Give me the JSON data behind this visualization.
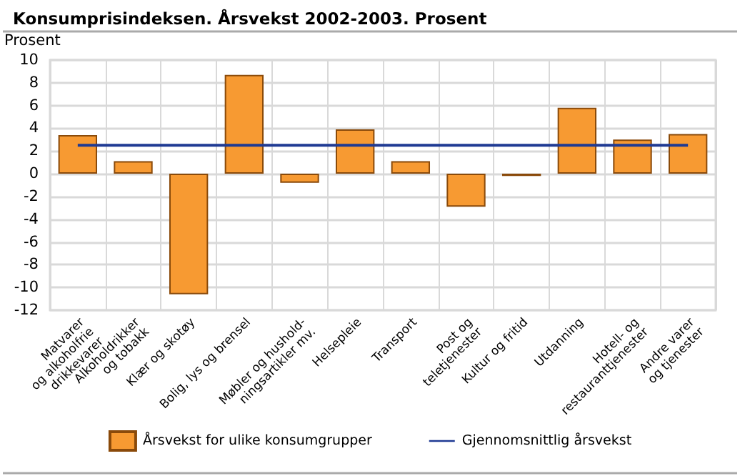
{
  "chart_data": {
    "type": "bar",
    "title": "Konsumprisindeksen. Årsvekst 2002-2003. Prosent",
    "ylabel": "Prosent",
    "categories": [
      "Matvarer\nog alkoholfrie\ndrikkevarer",
      "Alkoholdrikker\nog tobakk",
      "Klær og skotøy",
      "Bolig, lys og brensel",
      "Møbler og hushold-\nningsartikler mv.",
      "Helsepleie",
      "Transport",
      "Post og\nteletjenester",
      "Kultur og fritid",
      "Utdanning",
      "Hotell- og\nrestauranttjenester",
      "Andre varer\nog tjenester"
    ],
    "series": [
      {
        "name": "Årsvekst for ulike konsumgrupper",
        "color": "#f79a32",
        "values": [
          3.4,
          1.1,
          -10.6,
          8.7,
          -0.8,
          3.9,
          1.1,
          -2.9,
          -0.2,
          5.8,
          3.0,
          3.5
        ]
      },
      {
        "name": "Gjennomsnittlig årsvekst",
        "type": "line",
        "color": "#1f3a93",
        "values": [
          2.5,
          2.5,
          2.5,
          2.5,
          2.5,
          2.5,
          2.5,
          2.5,
          2.5,
          2.5,
          2.5,
          2.5
        ]
      }
    ],
    "ylim": [
      -12,
      10
    ],
    "yticks": [
      -12,
      -10,
      -8,
      -6,
      -4,
      -2,
      0,
      2,
      4,
      6,
      8,
      10
    ],
    "grid": true,
    "legend": "bottom",
    "marker": "none"
  }
}
